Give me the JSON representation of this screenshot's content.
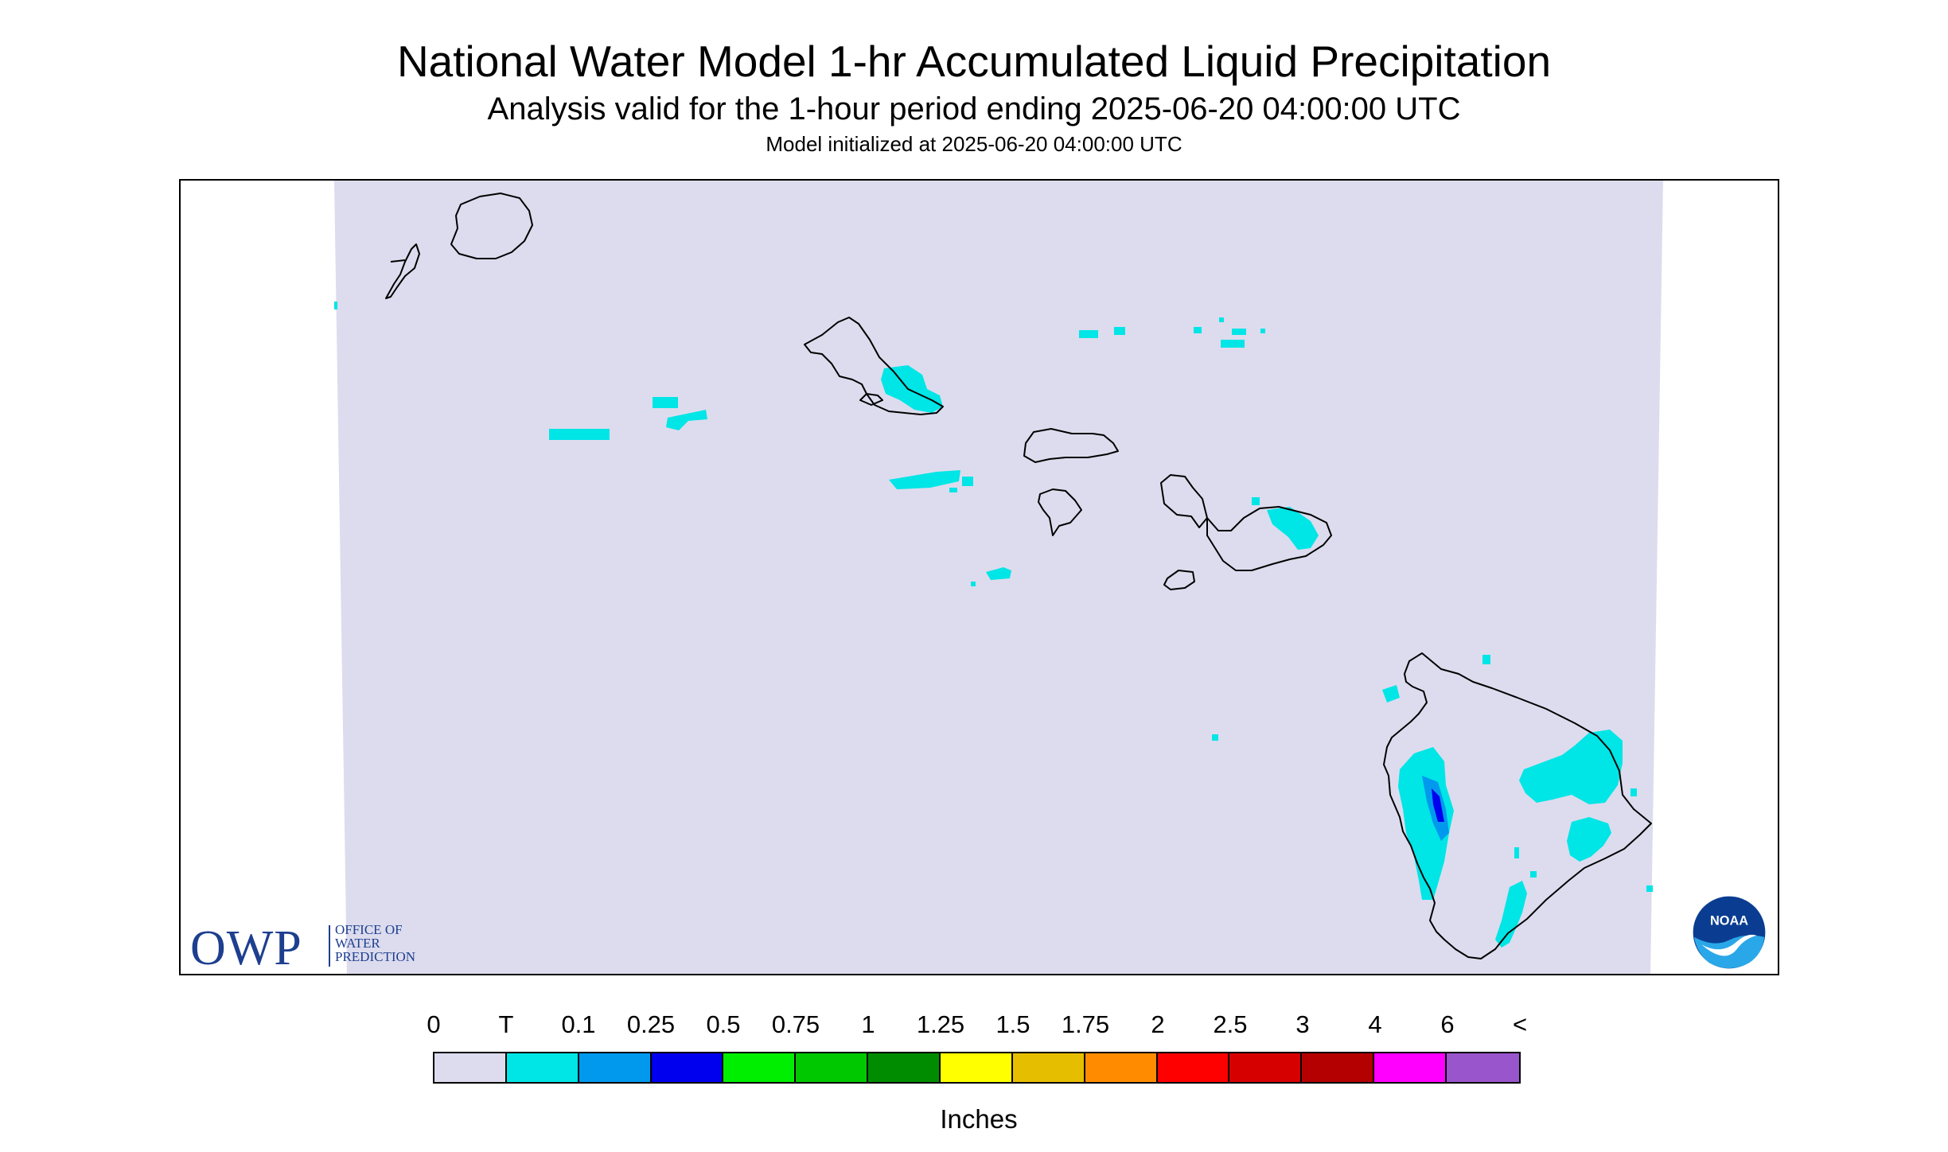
{
  "header": {
    "title": "National Water Model 1-hr Accumulated Liquid Precipitation",
    "subtitle": "Analysis valid for the 1-hour period ending 2025-06-20 04:00:00 UTC",
    "init": "Model initialized at 2025-06-20 04:00:00 UTC"
  },
  "map": {
    "background_color": "#dcdcee",
    "coastline_color": "#000000",
    "islands": [
      "Niihau",
      "Kauai",
      "Oahu",
      "Molokai",
      "Lanai",
      "Maui",
      "Kahoolawe",
      "Hawaii"
    ],
    "precip_colors": {
      "trace": "#00e5e5",
      "light": "#0099ee",
      "moderate": "#0000ee"
    }
  },
  "logos": {
    "owp": {
      "word": "OWP",
      "line1": "OFFICE OF",
      "line2": "WATER",
      "line3": "PREDICTION"
    },
    "noaa": {
      "word": "NOAA"
    }
  },
  "legend": {
    "labels": [
      "0",
      "T",
      "0.1",
      "0.25",
      "0.5",
      "0.75",
      "1",
      "1.25",
      "1.5",
      "1.75",
      "2",
      "2.5",
      "3",
      "4",
      "6",
      "<"
    ],
    "colors": [
      "#dcdcee",
      "#00e5e5",
      "#0099ee",
      "#0000ee",
      "#00ee00",
      "#00c800",
      "#008c00",
      "#ffff00",
      "#e6be00",
      "#ff8c00",
      "#ff0000",
      "#d70000",
      "#b40000",
      "#ff00ff",
      "#9955cc"
    ],
    "units": "Inches"
  }
}
